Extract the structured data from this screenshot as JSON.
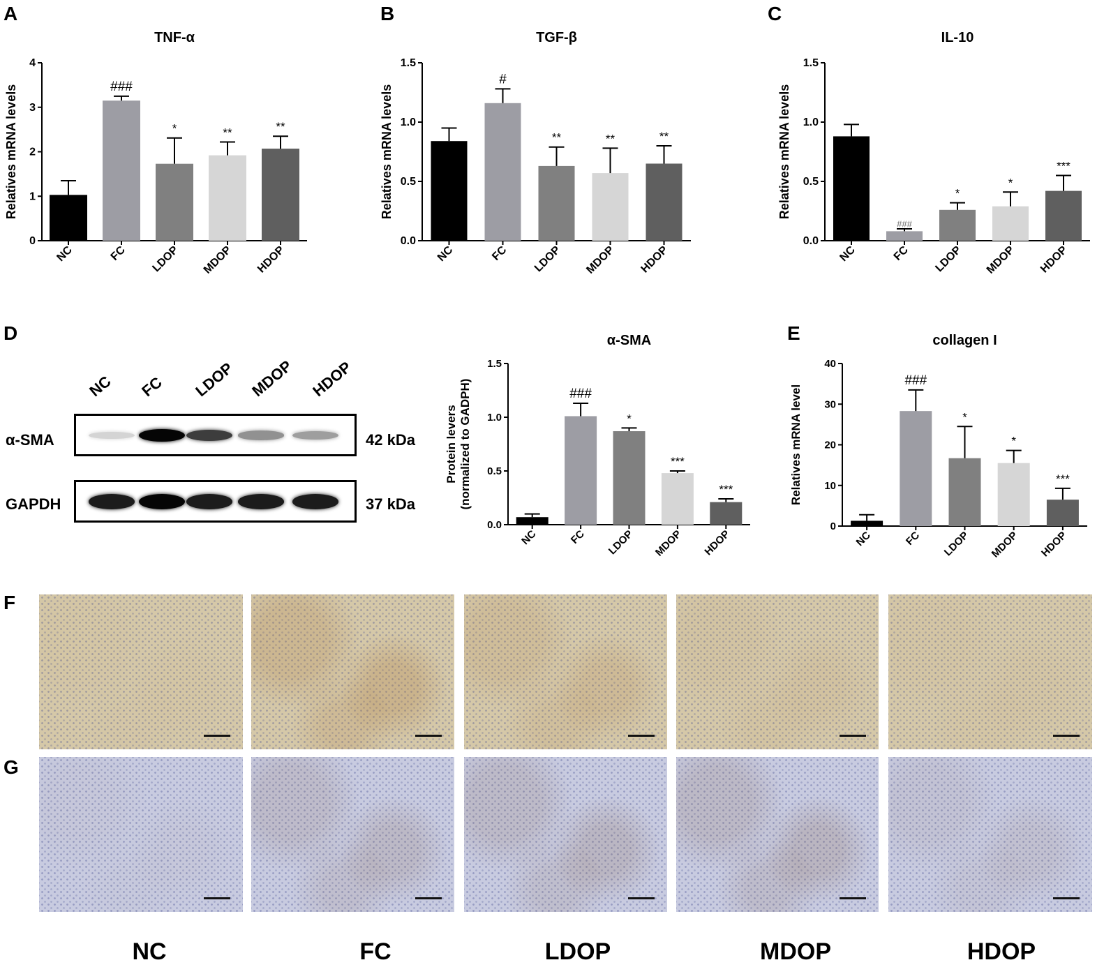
{
  "panel_letters": {
    "A": "A",
    "B": "B",
    "C": "C",
    "D": "D",
    "E": "E",
    "F": "F",
    "G": "G"
  },
  "chart_data": [
    {
      "id": "A",
      "type": "bar",
      "title": "TNF-α",
      "ylabel": "Relatives mRNA levels",
      "categories": [
        "NC",
        "FC",
        "LDOP",
        "MDOP",
        "HDOP"
      ],
      "values": [
        1.03,
        3.15,
        1.73,
        1.92,
        2.07
      ],
      "errors": [
        0.32,
        0.1,
        0.58,
        0.3,
        0.28
      ],
      "annotations": [
        "",
        "###",
        "*",
        "**",
        "**"
      ],
      "ylim": [
        0,
        4
      ],
      "yticks": [
        "0",
        "1",
        "2",
        "3",
        "4"
      ],
      "colors": [
        "#000000",
        "#9d9da4",
        "#808080",
        "#d6d6d6",
        "#5f5f5f"
      ]
    },
    {
      "id": "B",
      "type": "bar",
      "title": "TGF-β",
      "ylabel": "Relatives mRNA levels",
      "categories": [
        "NC",
        "FC",
        "LDOP",
        "MDOP",
        "HDOP"
      ],
      "values": [
        0.84,
        1.16,
        0.63,
        0.57,
        0.65
      ],
      "errors": [
        0.11,
        0.12,
        0.16,
        0.21,
        0.15
      ],
      "annotations": [
        "",
        "#",
        "**",
        "**",
        "**"
      ],
      "ylim": [
        0,
        1.5
      ],
      "yticks": [
        "0.0",
        "0.5",
        "1.0",
        "1.5"
      ],
      "colors": [
        "#000000",
        "#9d9da4",
        "#808080",
        "#d6d6d6",
        "#5f5f5f"
      ]
    },
    {
      "id": "C",
      "type": "bar",
      "title": "IL-10",
      "ylabel": "Relatives mRNA levels",
      "categories": [
        "NC",
        "FC",
        "LDOP",
        "MDOP",
        "HDOP"
      ],
      "values": [
        0.88,
        0.08,
        0.26,
        0.29,
        0.42
      ],
      "errors": [
        0.1,
        0.02,
        0.06,
        0.12,
        0.13
      ],
      "annotations": [
        "",
        "###",
        "*",
        "*",
        "***"
      ],
      "ylim": [
        0,
        1.5
      ],
      "yticks": [
        "0.0",
        "0.5",
        "1.0",
        "1.5"
      ],
      "colors": [
        "#000000",
        "#9d9da4",
        "#808080",
        "#d6d6d6",
        "#5f5f5f"
      ]
    },
    {
      "id": "D",
      "type": "bar",
      "title": "α-SMA",
      "ylabel": "Protein levers",
      "ylabel2": "(normalized to GADPH)",
      "categories": [
        "NC",
        "FC",
        "LDOP",
        "MDOP",
        "HDOP"
      ],
      "values": [
        0.07,
        1.01,
        0.87,
        0.48,
        0.21
      ],
      "errors": [
        0.03,
        0.12,
        0.03,
        0.02,
        0.03
      ],
      "annotations": [
        "",
        "###",
        "*",
        "***",
        "***"
      ],
      "ylim": [
        0,
        1.5
      ],
      "yticks": [
        "0.0",
        "0.5",
        "1.0",
        "1.5"
      ],
      "colors": [
        "#000000",
        "#9d9da4",
        "#808080",
        "#d6d6d6",
        "#5f5f5f"
      ]
    },
    {
      "id": "E",
      "type": "bar",
      "title": "collagen I",
      "ylabel": "Relatives mRNA level",
      "categories": [
        "NC",
        "FC",
        "LDOP",
        "MDOP",
        "HDOP"
      ],
      "values": [
        1.3,
        28.3,
        16.7,
        15.5,
        6.5
      ],
      "errors": [
        1.5,
        5.2,
        7.8,
        3.1,
        2.8
      ],
      "annotations": [
        "",
        "###",
        "*",
        "*",
        "***"
      ],
      "ylim": [
        0,
        40
      ],
      "yticks": [
        "0",
        "10",
        "20",
        "30",
        "40"
      ],
      "colors": [
        "#000000",
        "#9d9da4",
        "#808080",
        "#d6d6d6",
        "#5f5f5f"
      ]
    }
  ],
  "western_blot": {
    "lanes": [
      "NC",
      "FC",
      "LDOP",
      "MDOP",
      "HDOP"
    ],
    "rows": [
      {
        "label": "α-SMA",
        "kda": "42 kDa",
        "intensity": [
          0.08,
          1.0,
          0.75,
          0.38,
          0.32
        ]
      },
      {
        "label": "GAPDH",
        "kda": "37 kDa",
        "intensity": [
          0.9,
          1.0,
          0.9,
          0.9,
          0.9
        ]
      }
    ]
  },
  "micrographs": {
    "row_F": {
      "brown_stain": [
        0.1,
        0.85,
        0.55,
        0.25,
        0.15
      ],
      "color": "#d5c8a8"
    },
    "row_G": {
      "brown_stain": [
        0.1,
        0.5,
        0.55,
        0.6,
        0.3
      ],
      "color": "#c8cbe0"
    }
  },
  "group_labels": [
    "NC",
    "FC",
    "LDOP",
    "MDOP",
    "HDOP"
  ]
}
